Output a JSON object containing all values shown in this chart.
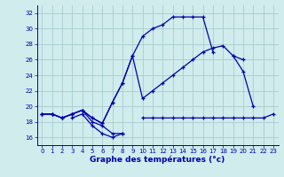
{
  "title": "Graphe des températures (°c)",
  "bg_color": "#d0ecec",
  "grid_color": "#a8cccc",
  "line_color": "#0000aa",
  "ylim": [
    15.0,
    33.0
  ],
  "yticks": [
    16,
    18,
    20,
    22,
    24,
    26,
    28,
    30,
    32
  ],
  "xlim": [
    -0.5,
    23.5
  ],
  "xticks": [
    0,
    1,
    2,
    3,
    4,
    5,
    6,
    7,
    8,
    9,
    10,
    11,
    12,
    13,
    14,
    15,
    16,
    17,
    18,
    19,
    20,
    21,
    22,
    23
  ],
  "line1_segments": [
    {
      "x": [
        0,
        1,
        2,
        3,
        4,
        5,
        6,
        7,
        8
      ],
      "y": [
        19.0,
        19.0,
        18.5,
        19.0,
        19.5,
        18.0,
        17.5,
        16.5,
        16.5
      ]
    },
    {
      "x": [
        10,
        11,
        12,
        13,
        14,
        15,
        16,
        17,
        18,
        19,
        20,
        21,
        22,
        23
      ],
      "y": [
        18.5,
        18.5,
        18.5,
        18.5,
        18.5,
        18.5,
        18.5,
        18.5,
        18.5,
        18.5,
        18.5,
        18.5,
        18.5,
        19.0
      ]
    }
  ],
  "line2_segments": [
    {
      "x": [
        0,
        1,
        2,
        3,
        4,
        5,
        6,
        7,
        8,
        9,
        10,
        11,
        12,
        13,
        14,
        15,
        16,
        17
      ],
      "y": [
        19.0,
        19.0,
        18.5,
        19.0,
        19.5,
        18.5,
        17.8,
        20.5,
        23.0,
        26.5,
        29.0,
        30.0,
        30.5,
        31.5,
        31.5,
        31.5,
        31.5,
        27.0
      ]
    },
    {
      "x": [
        19,
        20,
        21
      ],
      "y": [
        26.5,
        24.5,
        20.0
      ]
    }
  ],
  "line3_segments": [
    {
      "x": [
        0,
        1,
        2,
        3,
        4,
        5,
        6,
        7,
        8,
        9,
        10,
        11,
        12,
        13,
        14,
        15,
        16,
        17,
        18,
        19,
        20
      ],
      "y": [
        19.0,
        19.0,
        18.5,
        19.0,
        19.5,
        18.5,
        17.8,
        20.5,
        23.0,
        26.5,
        21.0,
        22.0,
        23.0,
        24.0,
        25.0,
        26.0,
        27.0,
        27.5,
        27.8,
        26.5,
        26.0
      ]
    }
  ],
  "line4_segments": [
    {
      "x": [
        3,
        4,
        5,
        6,
        7,
        8
      ],
      "y": [
        18.5,
        19.0,
        17.5,
        16.5,
        16.0,
        16.5
      ]
    }
  ]
}
